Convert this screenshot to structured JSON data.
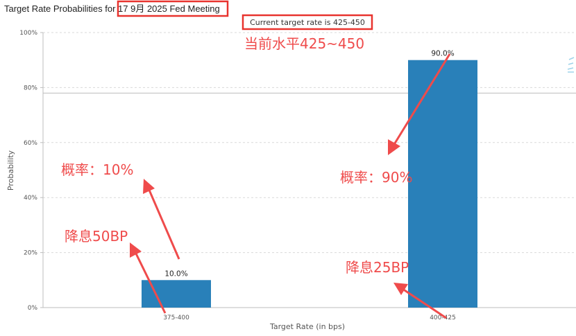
{
  "chart_data": {
    "type": "bar",
    "title_prefix": "Target Rate Probabilities for ",
    "title_highlight": "17 9月 2025 Fed Meeting",
    "subtitle": "Current target rate is 425-450",
    "xlabel": "Target Rate (in bps)",
    "ylabel": "Probability",
    "categories": [
      "375-400",
      "400-425"
    ],
    "values": [
      10.0,
      90.0
    ],
    "data_labels": [
      "10.0%",
      "90.0%"
    ],
    "ylim": [
      0,
      100
    ],
    "yticks": [
      0,
      20,
      40,
      60,
      80,
      100
    ],
    "ytick_labels": [
      "0%",
      "20%",
      "40%",
      "60%",
      "80%",
      "100%"
    ],
    "bar_color": "#2980b9",
    "grid": true,
    "current_rate_line": 78
  },
  "annotations": {
    "current_level": "当前水平425~450",
    "prob_left": "概率：10%",
    "cut_left": "降息50BP",
    "prob_right": "概率：90%",
    "cut_right": "降息25BP",
    "color": "#ef4b4b"
  }
}
